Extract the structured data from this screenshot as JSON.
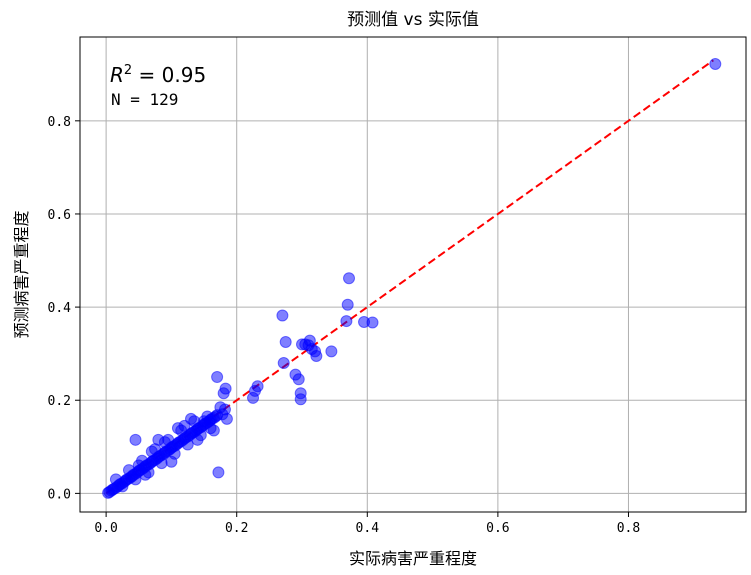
{
  "chart_data": {
    "type": "scatter",
    "title": "预测值 vs 实际值",
    "xlabel": "实际病害严重程度",
    "ylabel": "预测病害严重程度",
    "xlim": [
      -0.04,
      0.98
    ],
    "ylim": [
      -0.04,
      0.98
    ],
    "xticks": [
      0.0,
      0.2,
      0.4,
      0.6,
      0.8
    ],
    "yticks": [
      0.0,
      0.2,
      0.4,
      0.6,
      0.8
    ],
    "xtick_labels": [
      "0.0",
      "0.2",
      "0.4",
      "0.6",
      "0.8"
    ],
    "ytick_labels": [
      "0.0",
      "0.2",
      "0.4",
      "0.6",
      "0.8"
    ],
    "grid": true,
    "annotations": {
      "r2_symbol": "R",
      "r2_exponent": "2",
      "r2_value": " = 0.95",
      "n_text": "N = 129"
    },
    "reference_line": {
      "style": "dashed",
      "color": "#ff0000",
      "x": [
        0.0,
        0.93
      ],
      "y": [
        0.0,
        0.93
      ]
    },
    "marker_color": "#0000ff",
    "points": [
      [
        0.005,
        0.003
      ],
      [
        0.008,
        0.006
      ],
      [
        0.01,
        0.008
      ],
      [
        0.012,
        0.01
      ],
      [
        0.015,
        0.012
      ],
      [
        0.018,
        0.015
      ],
      [
        0.02,
        0.018
      ],
      [
        0.022,
        0.02
      ],
      [
        0.025,
        0.022
      ],
      [
        0.028,
        0.025
      ],
      [
        0.03,
        0.028
      ],
      [
        0.032,
        0.03
      ],
      [
        0.035,
        0.032
      ],
      [
        0.038,
        0.035
      ],
      [
        0.04,
        0.037
      ],
      [
        0.042,
        0.04
      ],
      [
        0.045,
        0.042
      ],
      [
        0.048,
        0.045
      ],
      [
        0.05,
        0.048
      ],
      [
        0.052,
        0.05
      ],
      [
        0.055,
        0.052
      ],
      [
        0.058,
        0.055
      ],
      [
        0.06,
        0.058
      ],
      [
        0.062,
        0.06
      ],
      [
        0.065,
        0.062
      ],
      [
        0.068,
        0.065
      ],
      [
        0.07,
        0.068
      ],
      [
        0.072,
        0.07
      ],
      [
        0.075,
        0.072
      ],
      [
        0.078,
        0.075
      ],
      [
        0.08,
        0.078
      ],
      [
        0.082,
        0.08
      ],
      [
        0.085,
        0.082
      ],
      [
        0.088,
        0.085
      ],
      [
        0.09,
        0.088
      ],
      [
        0.092,
        0.09
      ],
      [
        0.095,
        0.092
      ],
      [
        0.098,
        0.095
      ],
      [
        0.1,
        0.098
      ],
      [
        0.102,
        0.1
      ],
      [
        0.105,
        0.102
      ],
      [
        0.108,
        0.105
      ],
      [
        0.11,
        0.108
      ],
      [
        0.112,
        0.11
      ],
      [
        0.115,
        0.112
      ],
      [
        0.118,
        0.115
      ],
      [
        0.12,
        0.118
      ],
      [
        0.122,
        0.12
      ],
      [
        0.125,
        0.122
      ],
      [
        0.128,
        0.125
      ],
      [
        0.13,
        0.128
      ],
      [
        0.132,
        0.13
      ],
      [
        0.135,
        0.132
      ],
      [
        0.138,
        0.135
      ],
      [
        0.14,
        0.138
      ],
      [
        0.142,
        0.14
      ],
      [
        0.145,
        0.142
      ],
      [
        0.148,
        0.145
      ],
      [
        0.15,
        0.148
      ],
      [
        0.152,
        0.15
      ],
      [
        0.155,
        0.152
      ],
      [
        0.158,
        0.155
      ],
      [
        0.16,
        0.158
      ],
      [
        0.162,
        0.16
      ],
      [
        0.165,
        0.162
      ],
      [
        0.168,
        0.165
      ],
      [
        0.17,
        0.168
      ],
      [
        0.015,
        0.03
      ],
      [
        0.025,
        0.015
      ],
      [
        0.035,
        0.05
      ],
      [
        0.045,
        0.03
      ],
      [
        0.055,
        0.07
      ],
      [
        0.065,
        0.045
      ],
      [
        0.075,
        0.095
      ],
      [
        0.085,
        0.065
      ],
      [
        0.095,
        0.115
      ],
      [
        0.105,
        0.085
      ],
      [
        0.115,
        0.135
      ],
      [
        0.125,
        0.105
      ],
      [
        0.135,
        0.155
      ],
      [
        0.145,
        0.125
      ],
      [
        0.155,
        0.165
      ],
      [
        0.165,
        0.135
      ],
      [
        0.06,
        0.04
      ],
      [
        0.08,
        0.115
      ],
      [
        0.1,
        0.068
      ],
      [
        0.12,
        0.145
      ],
      [
        0.14,
        0.115
      ],
      [
        0.16,
        0.14
      ],
      [
        0.045,
        0.115
      ],
      [
        0.172,
        0.045
      ],
      [
        0.17,
        0.25
      ],
      [
        0.175,
        0.185
      ],
      [
        0.18,
        0.215
      ],
      [
        0.183,
        0.225
      ],
      [
        0.185,
        0.16
      ],
      [
        0.182,
        0.18
      ],
      [
        0.178,
        0.17
      ],
      [
        0.15,
        0.155
      ],
      [
        0.13,
        0.16
      ],
      [
        0.11,
        0.14
      ],
      [
        0.09,
        0.11
      ],
      [
        0.07,
        0.09
      ],
      [
        0.05,
        0.06
      ],
      [
        0.225,
        0.205
      ],
      [
        0.228,
        0.22
      ],
      [
        0.232,
        0.23
      ],
      [
        0.27,
        0.382
      ],
      [
        0.275,
        0.325
      ],
      [
        0.272,
        0.28
      ],
      [
        0.29,
        0.255
      ],
      [
        0.295,
        0.245
      ],
      [
        0.298,
        0.215
      ],
      [
        0.298,
        0.202
      ],
      [
        0.3,
        0.32
      ],
      [
        0.305,
        0.32
      ],
      [
        0.31,
        0.318
      ],
      [
        0.315,
        0.31
      ],
      [
        0.32,
        0.305
      ],
      [
        0.322,
        0.295
      ],
      [
        0.345,
        0.305
      ],
      [
        0.368,
        0.37
      ],
      [
        0.37,
        0.405
      ],
      [
        0.372,
        0.462
      ],
      [
        0.395,
        0.368
      ],
      [
        0.408,
        0.367
      ],
      [
        0.312,
        0.328
      ],
      [
        0.933,
        0.922
      ],
      [
        0.003,
        0.001
      ]
    ]
  }
}
